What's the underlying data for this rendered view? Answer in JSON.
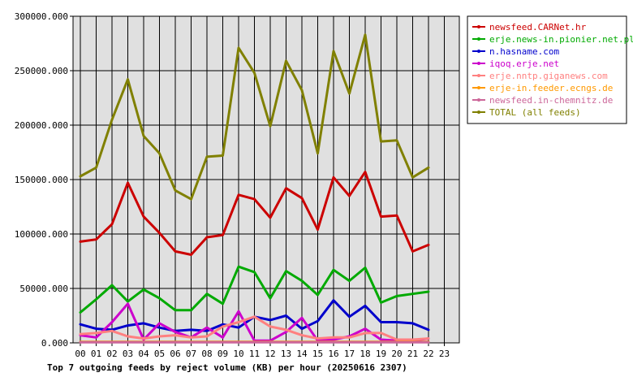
{
  "chart_data": {
    "type": "line",
    "title": "Top 7 outgoing feeds by reject volume (KB) per hour (20250616 2307)",
    "xlabel": "",
    "ylabel": "",
    "ylim": [
      0,
      300000
    ],
    "y_ticks": [
      "0.000",
      "50000.000",
      "100000.000",
      "150000.000",
      "200000.000",
      "250000.000",
      "300000.000"
    ],
    "y_tick_values": [
      0,
      50000,
      100000,
      150000,
      200000,
      250000,
      300000
    ],
    "x": [
      "00",
      "01",
      "02",
      "03",
      "04",
      "05",
      "06",
      "07",
      "08",
      "09",
      "10",
      "11",
      "12",
      "13",
      "14",
      "15",
      "16",
      "17",
      "18",
      "19",
      "20",
      "21",
      "22",
      "23"
    ],
    "grid": true,
    "legend_position": "right",
    "series": [
      {
        "name": "newsfeed.CARNet.hr",
        "color": "#cc0000",
        "values": [
          93000,
          95000,
          109000,
          147000,
          116000,
          101000,
          84000,
          81000,
          97000,
          99000,
          136000,
          132000,
          115000,
          142000,
          133000,
          104000,
          152000,
          135000,
          157000,
          116000,
          117000,
          84000,
          90000,
          null
        ]
      },
      {
        "name": "erje.news-in.pionier.net.pl",
        "color": "#00aa00",
        "values": [
          28000,
          40000,
          53000,
          38000,
          49000,
          41000,
          30000,
          30000,
          45000,
          36000,
          70000,
          65000,
          41000,
          66000,
          57000,
          44000,
          67000,
          57000,
          69000,
          37000,
          43000,
          45000,
          47000,
          null
        ]
      },
      {
        "name": "n.hasname.com",
        "color": "#0000cc",
        "values": [
          17000,
          13000,
          12000,
          16000,
          18000,
          14000,
          11000,
          12000,
          11000,
          17000,
          14000,
          24000,
          21000,
          25000,
          13000,
          20000,
          39000,
          24000,
          34000,
          19000,
          19000,
          18000,
          12000,
          null
        ]
      },
      {
        "name": "iqoq.erje.net",
        "color": "#cc00cc",
        "values": [
          7000,
          5000,
          19000,
          36000,
          3000,
          18000,
          10000,
          5000,
          14000,
          5000,
          29000,
          2000,
          2000,
          10000,
          23000,
          2000,
          3000,
          6000,
          13000,
          3000,
          2000,
          2000,
          4000,
          null
        ]
      },
      {
        "name": "erje.nntp.giganews.com",
        "color": "#ff8080",
        "values": [
          8000,
          9000,
          11000,
          6000,
          4000,
          6000,
          7000,
          5000,
          6000,
          15000,
          19000,
          24000,
          15000,
          12000,
          7000,
          4000,
          5000,
          5000,
          9000,
          9000,
          3000,
          3000,
          4000,
          null
        ]
      },
      {
        "name": "erje-in.feeder.ecngs.de",
        "color": "#ff9900",
        "values": [
          1000,
          1000,
          1000,
          1000,
          1000,
          1000,
          1000,
          1000,
          1000,
          1000,
          1000,
          1000,
          1000,
          1000,
          1000,
          1000,
          1000,
          1000,
          1000,
          1000,
          1000,
          1000,
          1000,
          null
        ]
      },
      {
        "name": "newsfeed.in-chemnitz.de",
        "color": "#cc6699",
        "values": [
          500,
          500,
          500,
          500,
          500,
          500,
          500,
          500,
          500,
          500,
          500,
          500,
          500,
          500,
          500,
          500,
          500,
          500,
          500,
          500,
          500,
          500,
          500,
          null
        ]
      },
      {
        "name": "TOTAL (all feeds)",
        "color": "#808000",
        "values": [
          153000,
          161000,
          205000,
          242000,
          190000,
          174000,
          140000,
          132000,
          171000,
          172000,
          271000,
          248000,
          199000,
          259000,
          232000,
          174000,
          268000,
          229000,
          283000,
          185000,
          186000,
          152000,
          161000,
          null
        ]
      }
    ]
  }
}
